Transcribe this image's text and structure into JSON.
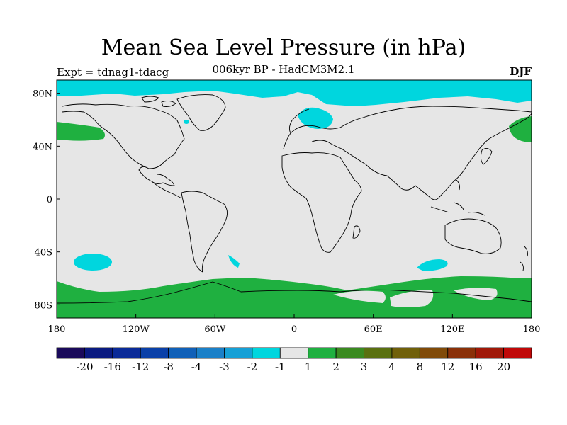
{
  "title": "Mean Sea Level Pressure (in hPa)",
  "subtitle": "006kyr BP - HadCM3M2.1",
  "experiment": "Expt = tdnag1-tdacg",
  "season": "DJF",
  "colors": {
    "background": "#e6e6e6",
    "positive": "#1fb040",
    "negative": "#00d6de",
    "coastline": "#000000"
  },
  "axes": {
    "x_ticks": [
      "180",
      "120W",
      "60W",
      "0",
      "60E",
      "120E",
      "180"
    ],
    "y_ticks": [
      "80N",
      "40N",
      "0",
      "40S",
      "80S"
    ]
  },
  "colorbar": {
    "colors": [
      "#1a0a5a",
      "#0a1a80",
      "#0a2a98",
      "#0a40a8",
      "#1060b8",
      "#1a80c8",
      "#16a0d6",
      "#00d6de",
      "#e6e6e6",
      "#1fb040",
      "#3a8a20",
      "#5a7010",
      "#70600a",
      "#804a08",
      "#8a3008",
      "#a01808",
      "#c00808"
    ],
    "labels": [
      "-20",
      "-16",
      "-12",
      "-8",
      "-4",
      "-3",
      "-2",
      "-1",
      "1",
      "2",
      "3",
      "4",
      "8",
      "12",
      "16",
      "20"
    ]
  }
}
